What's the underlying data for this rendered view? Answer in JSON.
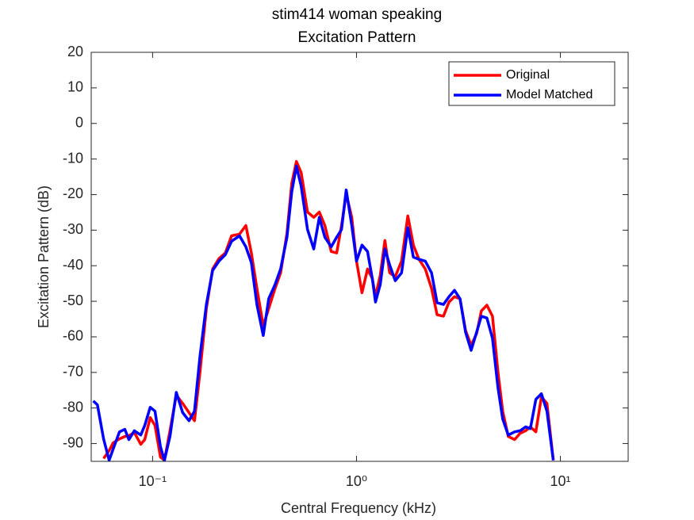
{
  "chart_data": {
    "type": "line",
    "title": "stim414 woman speaking",
    "subtitle": "Excitation Pattern",
    "xlabel": "Central Frequency (kHz)",
    "ylabel": "Excitation Pattern (dB)",
    "xscale": "log",
    "xlim": [
      0.05,
      21.5
    ],
    "ylim": [
      -95,
      20
    ],
    "xticks": [
      {
        "value": 0.1,
        "label": "10⁻¹"
      },
      {
        "value": 1,
        "label": "10⁰"
      },
      {
        "value": 10,
        "label": "10¹"
      }
    ],
    "yticks": [
      -90,
      -80,
      -70,
      -60,
      -50,
      -40,
      -30,
      -20,
      -10,
      0,
      10,
      20
    ],
    "legend": "northeast",
    "x": [
      0.0512,
      0.0536,
      0.0575,
      0.0612,
      0.064,
      0.0688,
      0.0731,
      0.0765,
      0.0814,
      0.0875,
      0.0915,
      0.0974,
      0.1027,
      0.1093,
      0.1143,
      0.1217,
      0.1307,
      0.1404,
      0.1508,
      0.1605,
      0.1708,
      0.1835,
      0.197,
      0.2116,
      0.2273,
      0.2441,
      0.2669,
      0.2867,
      0.3051,
      0.3247,
      0.3488,
      0.3713,
      0.3988,
      0.4244,
      0.4559,
      0.481,
      0.5074,
      0.5354,
      0.5749,
      0.6175,
      0.6572,
      0.6998,
      0.7515,
      0.8,
      0.8442,
      0.8906,
      0.9479,
      1.0,
      1.064,
      1.133,
      1.195,
      1.239,
      1.307,
      1.379,
      1.455,
      1.549,
      1.664,
      1.786,
      1.901,
      2.024,
      2.174,
      2.334,
      2.485,
      2.669,
      2.842,
      3.025,
      3.22,
      3.427,
      3.648,
      3.883,
      4.097,
      4.361,
      4.642,
      4.941,
      5.213,
      5.549,
      5.961,
      6.344,
      6.753,
      7.124,
      7.582,
      8.072,
      8.592,
      9.228
    ],
    "series": [
      {
        "name": "Original",
        "color": "#ff0000",
        "values": [
          null,
          null,
          -94.2,
          -92,
          -89.8,
          -88.7,
          -88,
          -87.8,
          -86.9,
          -90.2,
          -88.9,
          -82.7,
          -84.9,
          -93.8,
          -94.7,
          -86.4,
          -76.4,
          -78.7,
          -81.3,
          -83.6,
          -69.8,
          -52,
          -40.9,
          -38,
          -36.4,
          -31.6,
          -31.1,
          -28.7,
          -36.4,
          -46.4,
          -56.9,
          -52,
          -46.4,
          -42,
          -30.9,
          -16.9,
          -10.7,
          -13.8,
          -24.9,
          -26.4,
          -24.9,
          -28.7,
          -36,
          -36.4,
          -28.7,
          -19.8,
          -26.4,
          -38.7,
          -47.6,
          -40.9,
          -43.6,
          -48.7,
          -42.7,
          -32.9,
          -42,
          -43.1,
          -38.7,
          -26,
          -34.2,
          -38.2,
          -40.9,
          -46.4,
          -53.8,
          -54.2,
          -50.2,
          -48.7,
          -49.3,
          -58.2,
          -62.4,
          -59.1,
          -52.7,
          -51.1,
          -54.2,
          -69.8,
          -80.9,
          -88,
          -88.9,
          -87.1,
          -86.4,
          -85.3,
          -86.7,
          -76.9,
          -78.7,
          -94.7
        ]
      },
      {
        "name": "Model Matched",
        "color": "#0000ff",
        "values": [
          -78,
          -79.1,
          -88.7,
          -94.7,
          -91.6,
          -86.7,
          -86,
          -88.9,
          -86.4,
          -87.6,
          -84.9,
          -79.8,
          -80.9,
          -90.9,
          -94.7,
          -88,
          -75.6,
          -81.3,
          -83.6,
          -80.9,
          -65.3,
          -50.9,
          -41.3,
          -38.7,
          -36.9,
          -33.1,
          -31.6,
          -34.7,
          -39.1,
          -50.9,
          -59.6,
          -49.3,
          -45.3,
          -40.9,
          -32,
          -19.3,
          -12,
          -17.6,
          -29.8,
          -35.3,
          -26.4,
          -32,
          -34.7,
          -32,
          -29.8,
          -18.7,
          -28.7,
          -38.7,
          -34.2,
          -36,
          -43.6,
          -50.2,
          -45.3,
          -35.3,
          -39.8,
          -44.2,
          -42,
          -29.3,
          -37.6,
          -38.2,
          -38.7,
          -42,
          -50.4,
          -50.9,
          -48.7,
          -46.9,
          -49.3,
          -58.7,
          -63.8,
          -58.7,
          -54.2,
          -54.7,
          -60.4,
          -74.2,
          -83.1,
          -87.6,
          -86.7,
          -86.4,
          -85.3,
          -85.8,
          -77.6,
          -76,
          -80.9,
          -94.7
        ]
      }
    ]
  }
}
